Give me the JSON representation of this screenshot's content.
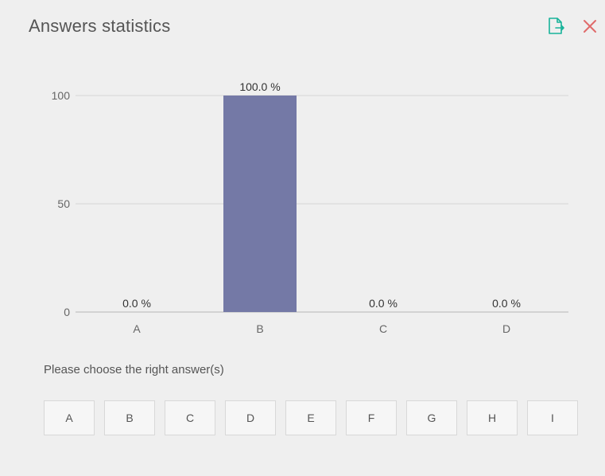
{
  "dialog": {
    "title": "Answers statistics",
    "export_icon": "export-document-icon",
    "close_icon": "close-icon",
    "accent_color": "#18b39a",
    "close_color": "#e06b6b"
  },
  "chart_data": {
    "type": "bar",
    "categories": [
      "A",
      "B",
      "C",
      "D"
    ],
    "values": [
      0.0,
      100.0,
      0.0,
      0.0
    ],
    "data_labels": [
      "0.0 %",
      "100.0 %",
      "0.0 %",
      "0.0 %"
    ],
    "ylim": [
      0,
      100
    ],
    "yticks": [
      0,
      50,
      100
    ],
    "ytick_labels": [
      "0",
      "50",
      "100"
    ],
    "bar_color": "#7479a6",
    "grid": true
  },
  "answer_panel": {
    "prompt": "Please choose the right answer(s)",
    "options": [
      "A",
      "B",
      "C",
      "D",
      "E",
      "F",
      "G",
      "H",
      "I"
    ]
  }
}
